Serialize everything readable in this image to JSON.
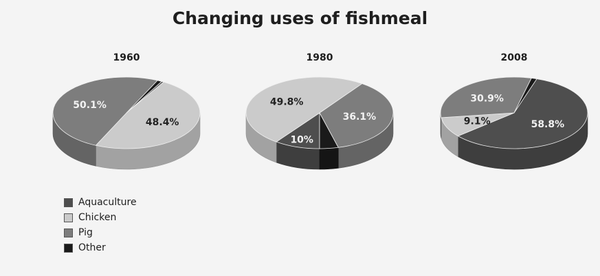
{
  "chart_data": {
    "type": "pie",
    "title": "Changing uses of fishmeal",
    "categories": [
      "Aquaculture",
      "Chicken",
      "Pig",
      "Other"
    ],
    "colors": {
      "Aquaculture": "#4e4e4e",
      "Chicken": "#cbcbcb",
      "Pig": "#7d7d7d",
      "Other": "#1a1a1a"
    },
    "legend_position": "bottom-left",
    "pies": [
      {
        "label": "1960",
        "values": {
          "Aquaculture": 0.5,
          "Chicken": 48.4,
          "Pig": 50.1,
          "Other": 1.0
        },
        "data_labels": {
          "Chicken": "48.4%",
          "Pig": "50.1%"
        }
      },
      {
        "label": "1980",
        "values": {
          "Aquaculture": 10,
          "Chicken": 49.8,
          "Pig": 36.1,
          "Other": 4.1
        },
        "data_labels": {
          "Aquaculture": "10%",
          "Chicken": "49.8%",
          "Pig": "36.1%"
        }
      },
      {
        "label": "2008",
        "values": {
          "Aquaculture": 58.8,
          "Chicken": 9.1,
          "Pig": 30.9,
          "Other": 1.2
        },
        "data_labels": {
          "Aquaculture": "58.8%",
          "Chicken": "9.1%",
          "Pig": "30.9%"
        }
      }
    ]
  }
}
